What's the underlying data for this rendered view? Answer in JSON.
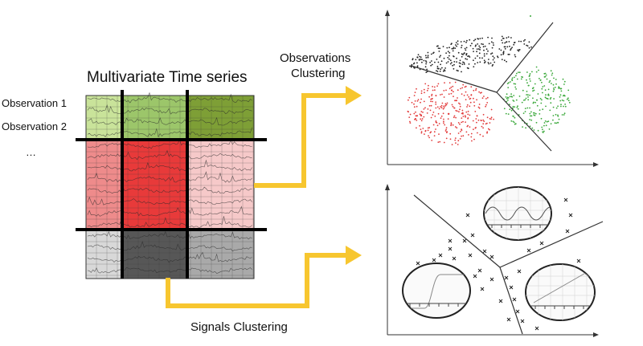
{
  "labels": {
    "title": "Multivariate Time series",
    "observation_1": "Observation 1",
    "observation_2": "Observation 2",
    "ellipsis": "…",
    "observations_clustering_line1": "Observations",
    "observations_clustering_line2": "Clustering",
    "signals_clustering": "Signals Clustering"
  },
  "colors": {
    "arrow": "#F7C62F",
    "row1": [
      "#c9e39a",
      "#9cc66a",
      "#7e9f36"
    ],
    "row2": [
      "#ee8b8b",
      "#e83a3a",
      "#f6c9c9"
    ],
    "row3": [
      "#d8d8d8",
      "#575757",
      "#a9a9a9"
    ],
    "cluster_black": "#222222",
    "cluster_red": "#e23b3b",
    "cluster_green": "#3aa83a"
  },
  "icons": [
    "arrow-right-icon",
    "arrow-right-icon",
    "ellipse-sine-icon",
    "ellipse-sigmoid-icon",
    "ellipse-line-icon"
  ]
}
